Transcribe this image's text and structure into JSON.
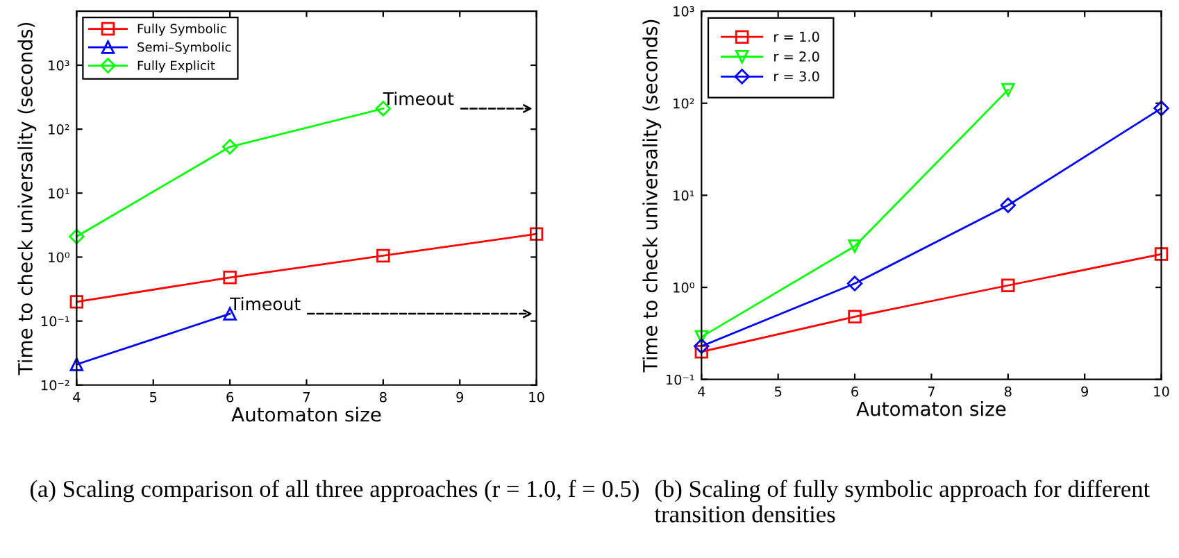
{
  "chart_data": [
    {
      "type": "line",
      "xlabel": "Automaton size",
      "ylabel": "Time to check universality (seconds)",
      "x": [
        4,
        6,
        8,
        10
      ],
      "log": "y",
      "xlim": [
        4,
        10
      ],
      "xticks": [
        4,
        5,
        6,
        7,
        8,
        9,
        10
      ],
      "ylim": [
        0.01,
        7000
      ],
      "yticks": [
        {
          "value": 0.01,
          "label": "10⁻²"
        },
        {
          "value": 0.1,
          "label": "10⁻¹"
        },
        {
          "value": 1,
          "label": "10⁰"
        },
        {
          "value": 10,
          "label": "10¹"
        },
        {
          "value": 100,
          "label": "10²"
        },
        {
          "value": 1000,
          "label": "10³"
        }
      ],
      "grid": false,
      "legend": "top left",
      "series": [
        {
          "name": "Fully Symbolic",
          "color": "#ff0000",
          "marker": "square",
          "values": [
            0.2,
            0.48,
            1.05,
            2.3
          ]
        },
        {
          "name": "Semi–Symbolic",
          "color": "#0000ff",
          "marker": "triangle",
          "values": [
            0.021,
            0.13,
            null,
            null
          ]
        },
        {
          "name": "Fully Explicit",
          "color": "#00ff00",
          "marker": "diamond",
          "values": [
            2.1,
            53,
            210,
            null
          ]
        }
      ],
      "annotations": [
        {
          "text": "Timeout",
          "x": 8,
          "y": 210
        },
        {
          "text": "Timeout",
          "x": 6,
          "y": 0.13
        },
        "(a) Scaling comparison of all three approaches (r = 1.0, f = 0.5)"
      ]
    },
    {
      "type": "line",
      "xlabel": "Automaton size",
      "ylabel": "Time to check universality (seconds)",
      "x": [
        4,
        6,
        8,
        10
      ],
      "log": "y",
      "xlim": [
        4,
        10
      ],
      "xticks": [
        4,
        5,
        6,
        7,
        8,
        9,
        10
      ],
      "ylim": [
        0.1,
        1000
      ],
      "yticks": [
        {
          "value": 0.1,
          "label": "10⁻¹"
        },
        {
          "value": 1,
          "label": "10⁰"
        },
        {
          "value": 10,
          "label": "10¹"
        },
        {
          "value": 100,
          "label": "10²"
        },
        {
          "value": 1000,
          "label": "10³"
        }
      ],
      "grid": false,
      "legend": "top left",
      "series": [
        {
          "name": "r = 1.0",
          "color": "#ff0000",
          "marker": "square",
          "values": [
            0.2,
            0.48,
            1.05,
            2.3
          ]
        },
        {
          "name": "r = 2.0",
          "color": "#00ff00",
          "marker": "triangle_down",
          "values": [
            0.29,
            2.8,
            140,
            null
          ]
        },
        {
          "name": "r = 3.0",
          "color": "#0000ff",
          "marker": "diamond",
          "values": [
            0.23,
            1.1,
            7.8,
            88
          ]
        }
      ],
      "annotations": [
        "(b) Scaling of fully symbolic approach for different transition densities"
      ]
    }
  ]
}
